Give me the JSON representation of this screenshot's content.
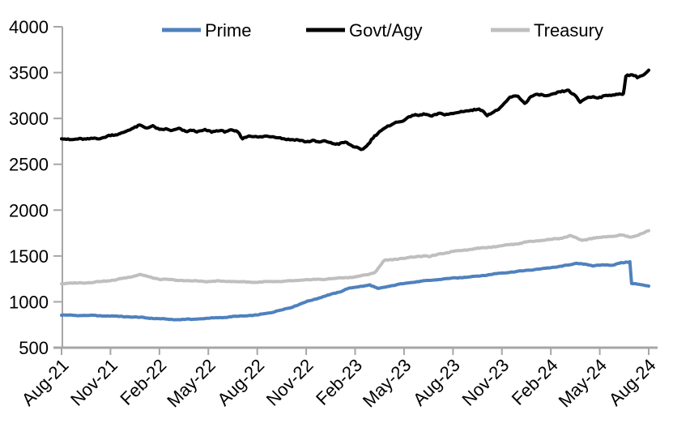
{
  "chart_data": {
    "type": "line",
    "title": "",
    "xlabel": "",
    "ylabel": "",
    "x_unit": "months since Aug-2021 (0 = Aug-21, 36 = Aug-24)",
    "xlim_months": [
      0,
      36
    ],
    "ylim": [
      500,
      4000
    ],
    "y_tick_step": 500,
    "grid": false,
    "legend_position": "top",
    "background_color": "#FFFFFF",
    "axis_color": "#A6A6A6",
    "x_tick_labels": [
      "Aug-21",
      "Nov-21",
      "Feb-22",
      "May-22",
      "Aug-22",
      "Nov-22",
      "Feb-23",
      "May-23",
      "Aug-23",
      "Nov-23",
      "Feb-24",
      "May-24",
      "Aug-24"
    ],
    "y_tick_labels": [
      "500",
      "1000",
      "1500",
      "2000",
      "2500",
      "3000",
      "3500",
      "4000"
    ],
    "series": [
      {
        "name": "Prime",
        "color": "#4F81BD",
        "noise_amplitude": 4,
        "points": [
          [
            0,
            855
          ],
          [
            1,
            852
          ],
          [
            2,
            850
          ],
          [
            3,
            845
          ],
          [
            4,
            838
          ],
          [
            5,
            828
          ],
          [
            6,
            815
          ],
          [
            7,
            806
          ],
          [
            8,
            810
          ],
          [
            9,
            820
          ],
          [
            9.6,
            827
          ],
          [
            10.2,
            833
          ],
          [
            11,
            845
          ],
          [
            12,
            855
          ],
          [
            13,
            890
          ],
          [
            14,
            935
          ],
          [
            15,
            1000
          ],
          [
            16,
            1055
          ],
          [
            17,
            1105
          ],
          [
            17.5,
            1142
          ],
          [
            18,
            1158
          ],
          [
            18.9,
            1185
          ],
          [
            19.4,
            1142
          ],
          [
            20,
            1168
          ],
          [
            20.7,
            1190
          ],
          [
            21.2,
            1208
          ],
          [
            22,
            1222
          ],
          [
            23,
            1242
          ],
          [
            24,
            1258
          ],
          [
            25,
            1272
          ],
          [
            26,
            1290
          ],
          [
            27,
            1315
          ],
          [
            28,
            1332
          ],
          [
            29,
            1352
          ],
          [
            30,
            1372
          ],
          [
            31,
            1398
          ],
          [
            31.6,
            1420
          ],
          [
            32.1,
            1412
          ],
          [
            32.6,
            1390
          ],
          [
            33.2,
            1406
          ],
          [
            33.8,
            1398
          ],
          [
            34.3,
            1425
          ],
          [
            34.85,
            1438
          ],
          [
            34.95,
            1200
          ],
          [
            35.4,
            1190
          ],
          [
            35.7,
            1182
          ],
          [
            36,
            1172
          ]
        ]
      },
      {
        "name": "Govt/Agy",
        "color": "#000000",
        "noise_amplitude": 10,
        "points": [
          [
            0,
            2780
          ],
          [
            0.5,
            2772
          ],
          [
            1,
            2776
          ],
          [
            1.5,
            2768
          ],
          [
            2,
            2790
          ],
          [
            2.5,
            2782
          ],
          [
            3,
            2815
          ],
          [
            3.5,
            2832
          ],
          [
            4,
            2862
          ],
          [
            4.4,
            2890
          ],
          [
            4.8,
            2930
          ],
          [
            5.2,
            2900
          ],
          [
            5.6,
            2912
          ],
          [
            6,
            2874
          ],
          [
            6.4,
            2890
          ],
          [
            6.8,
            2868
          ],
          [
            7.2,
            2884
          ],
          [
            7.6,
            2858
          ],
          [
            8,
            2876
          ],
          [
            8.4,
            2852
          ],
          [
            8.8,
            2870
          ],
          [
            9.2,
            2858
          ],
          [
            9.6,
            2872
          ],
          [
            10,
            2852
          ],
          [
            10.4,
            2868
          ],
          [
            10.8,
            2862
          ],
          [
            11.1,
            2782
          ],
          [
            11.5,
            2806
          ],
          [
            12,
            2798
          ],
          [
            12.5,
            2810
          ],
          [
            13,
            2796
          ],
          [
            13.5,
            2786
          ],
          [
            14,
            2772
          ],
          [
            14.5,
            2760
          ],
          [
            15,
            2748
          ],
          [
            15.4,
            2762
          ],
          [
            15.8,
            2736
          ],
          [
            16.2,
            2752
          ],
          [
            16.6,
            2732
          ],
          [
            17,
            2722
          ],
          [
            17.4,
            2736
          ],
          [
            17.8,
            2702
          ],
          [
            18.1,
            2688
          ],
          [
            18.35,
            2662
          ],
          [
            18.6,
            2680
          ],
          [
            18.8,
            2712
          ],
          [
            19.1,
            2788
          ],
          [
            19.5,
            2862
          ],
          [
            19.9,
            2902
          ],
          [
            20.3,
            2938
          ],
          [
            20.7,
            2962
          ],
          [
            21.1,
            2995
          ],
          [
            21.5,
            3035
          ],
          [
            21.9,
            3028
          ],
          [
            22.3,
            3052
          ],
          [
            22.7,
            3028
          ],
          [
            23.1,
            3048
          ],
          [
            23.5,
            3042
          ],
          [
            24,
            3058
          ],
          [
            24.5,
            3072
          ],
          [
            25,
            3082
          ],
          [
            25.6,
            3112
          ],
          [
            26.1,
            3032
          ],
          [
            26.5,
            3068
          ],
          [
            27,
            3135
          ],
          [
            27.5,
            3228
          ],
          [
            28,
            3242
          ],
          [
            28.4,
            3168
          ],
          [
            28.8,
            3240
          ],
          [
            29.3,
            3258
          ],
          [
            29.8,
            3250
          ],
          [
            30.3,
            3272
          ],
          [
            30.8,
            3295
          ],
          [
            31.1,
            3308
          ],
          [
            31.5,
            3248
          ],
          [
            31.8,
            3175
          ],
          [
            32.2,
            3222
          ],
          [
            32.6,
            3240
          ],
          [
            33,
            3232
          ],
          [
            33.5,
            3248
          ],
          [
            34,
            3262
          ],
          [
            34.45,
            3272
          ],
          [
            34.6,
            3465
          ],
          [
            35,
            3472
          ],
          [
            35.3,
            3450
          ],
          [
            35.7,
            3480
          ],
          [
            36,
            3522
          ]
        ]
      },
      {
        "name": "Treasury",
        "color": "#BFBFBF",
        "noise_amplitude": 5,
        "points": [
          [
            0,
            1200
          ],
          [
            1,
            1205
          ],
          [
            2,
            1214
          ],
          [
            3,
            1232
          ],
          [
            4,
            1262
          ],
          [
            4.8,
            1300
          ],
          [
            5.4,
            1268
          ],
          [
            6,
            1248
          ],
          [
            7,
            1236
          ],
          [
            8,
            1228
          ],
          [
            9,
            1222
          ],
          [
            10,
            1226
          ],
          [
            11,
            1218
          ],
          [
            12,
            1214
          ],
          [
            13,
            1220
          ],
          [
            14,
            1226
          ],
          [
            15,
            1240
          ],
          [
            16,
            1246
          ],
          [
            17,
            1258
          ],
          [
            18,
            1272
          ],
          [
            18.8,
            1298
          ],
          [
            19.2,
            1320
          ],
          [
            19.8,
            1452
          ],
          [
            20.3,
            1462
          ],
          [
            21,
            1475
          ],
          [
            21.6,
            1490
          ],
          [
            22.2,
            1502
          ],
          [
            22.6,
            1494
          ],
          [
            23.2,
            1522
          ],
          [
            24,
            1550
          ],
          [
            25,
            1572
          ],
          [
            26,
            1592
          ],
          [
            27,
            1612
          ],
          [
            28,
            1636
          ],
          [
            28.6,
            1655
          ],
          [
            29.3,
            1668
          ],
          [
            30,
            1682
          ],
          [
            30.6,
            1692
          ],
          [
            31.2,
            1722
          ],
          [
            31.9,
            1668
          ],
          [
            32.4,
            1690
          ],
          [
            33,
            1702
          ],
          [
            33.8,
            1716
          ],
          [
            34.3,
            1728
          ],
          [
            34.9,
            1704
          ],
          [
            35.4,
            1732
          ],
          [
            36,
            1772
          ]
        ]
      }
    ]
  }
}
